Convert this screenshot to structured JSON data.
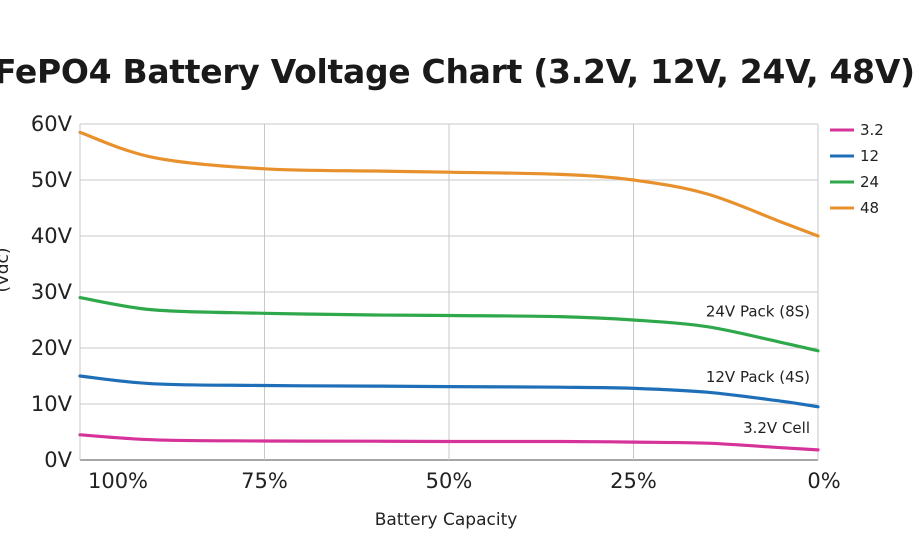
{
  "chart_data": {
    "type": "line",
    "title": "FePO4 Battery Voltage Chart (3.2V, 12V, 24V, 48V)",
    "title_visible": "FePO4 Battery Voltage Chart (3.2V, 12V, 24V, 48V)",
    "xlabel": "Battery Capacity",
    "ylabel": "(Vdc)",
    "x_ticks": [
      "100%",
      "75%",
      "50%",
      "25%",
      "0%"
    ],
    "y_ticks": [
      "0V",
      "10V",
      "20V",
      "30V",
      "40V",
      "50V",
      "60V"
    ],
    "x_range": [
      100,
      0
    ],
    "ylim": [
      0,
      60
    ],
    "grid": true,
    "legend_position": "right",
    "x": [
      100,
      90,
      75,
      60,
      50,
      35,
      25,
      15,
      5,
      0
    ],
    "series": [
      {
        "legend": "3.2",
        "annotation": "3.2V Cell",
        "color": "#d6339a",
        "values": [
          4.5,
          3.6,
          3.4,
          3.35,
          3.3,
          3.3,
          3.2,
          3.0,
          2.2,
          1.8
        ]
      },
      {
        "legend": "12",
        "annotation": "12V Pack (4S)",
        "color": "#1f6fb8",
        "values": [
          15.0,
          13.6,
          13.3,
          13.2,
          13.1,
          13.0,
          12.8,
          12.1,
          10.5,
          9.5
        ]
      },
      {
        "legend": "24",
        "annotation": "24V Pack (8S)",
        "color": "#2ea84a",
        "values": [
          29.0,
          26.8,
          26.2,
          25.9,
          25.8,
          25.6,
          25.0,
          23.8,
          21.0,
          19.5
        ]
      },
      {
        "legend": "48",
        "annotation": "",
        "color": "#e8912c",
        "values": [
          58.5,
          54.0,
          52.0,
          51.6,
          51.4,
          51.0,
          50.0,
          47.5,
          42.5,
          40.0
        ]
      }
    ]
  }
}
